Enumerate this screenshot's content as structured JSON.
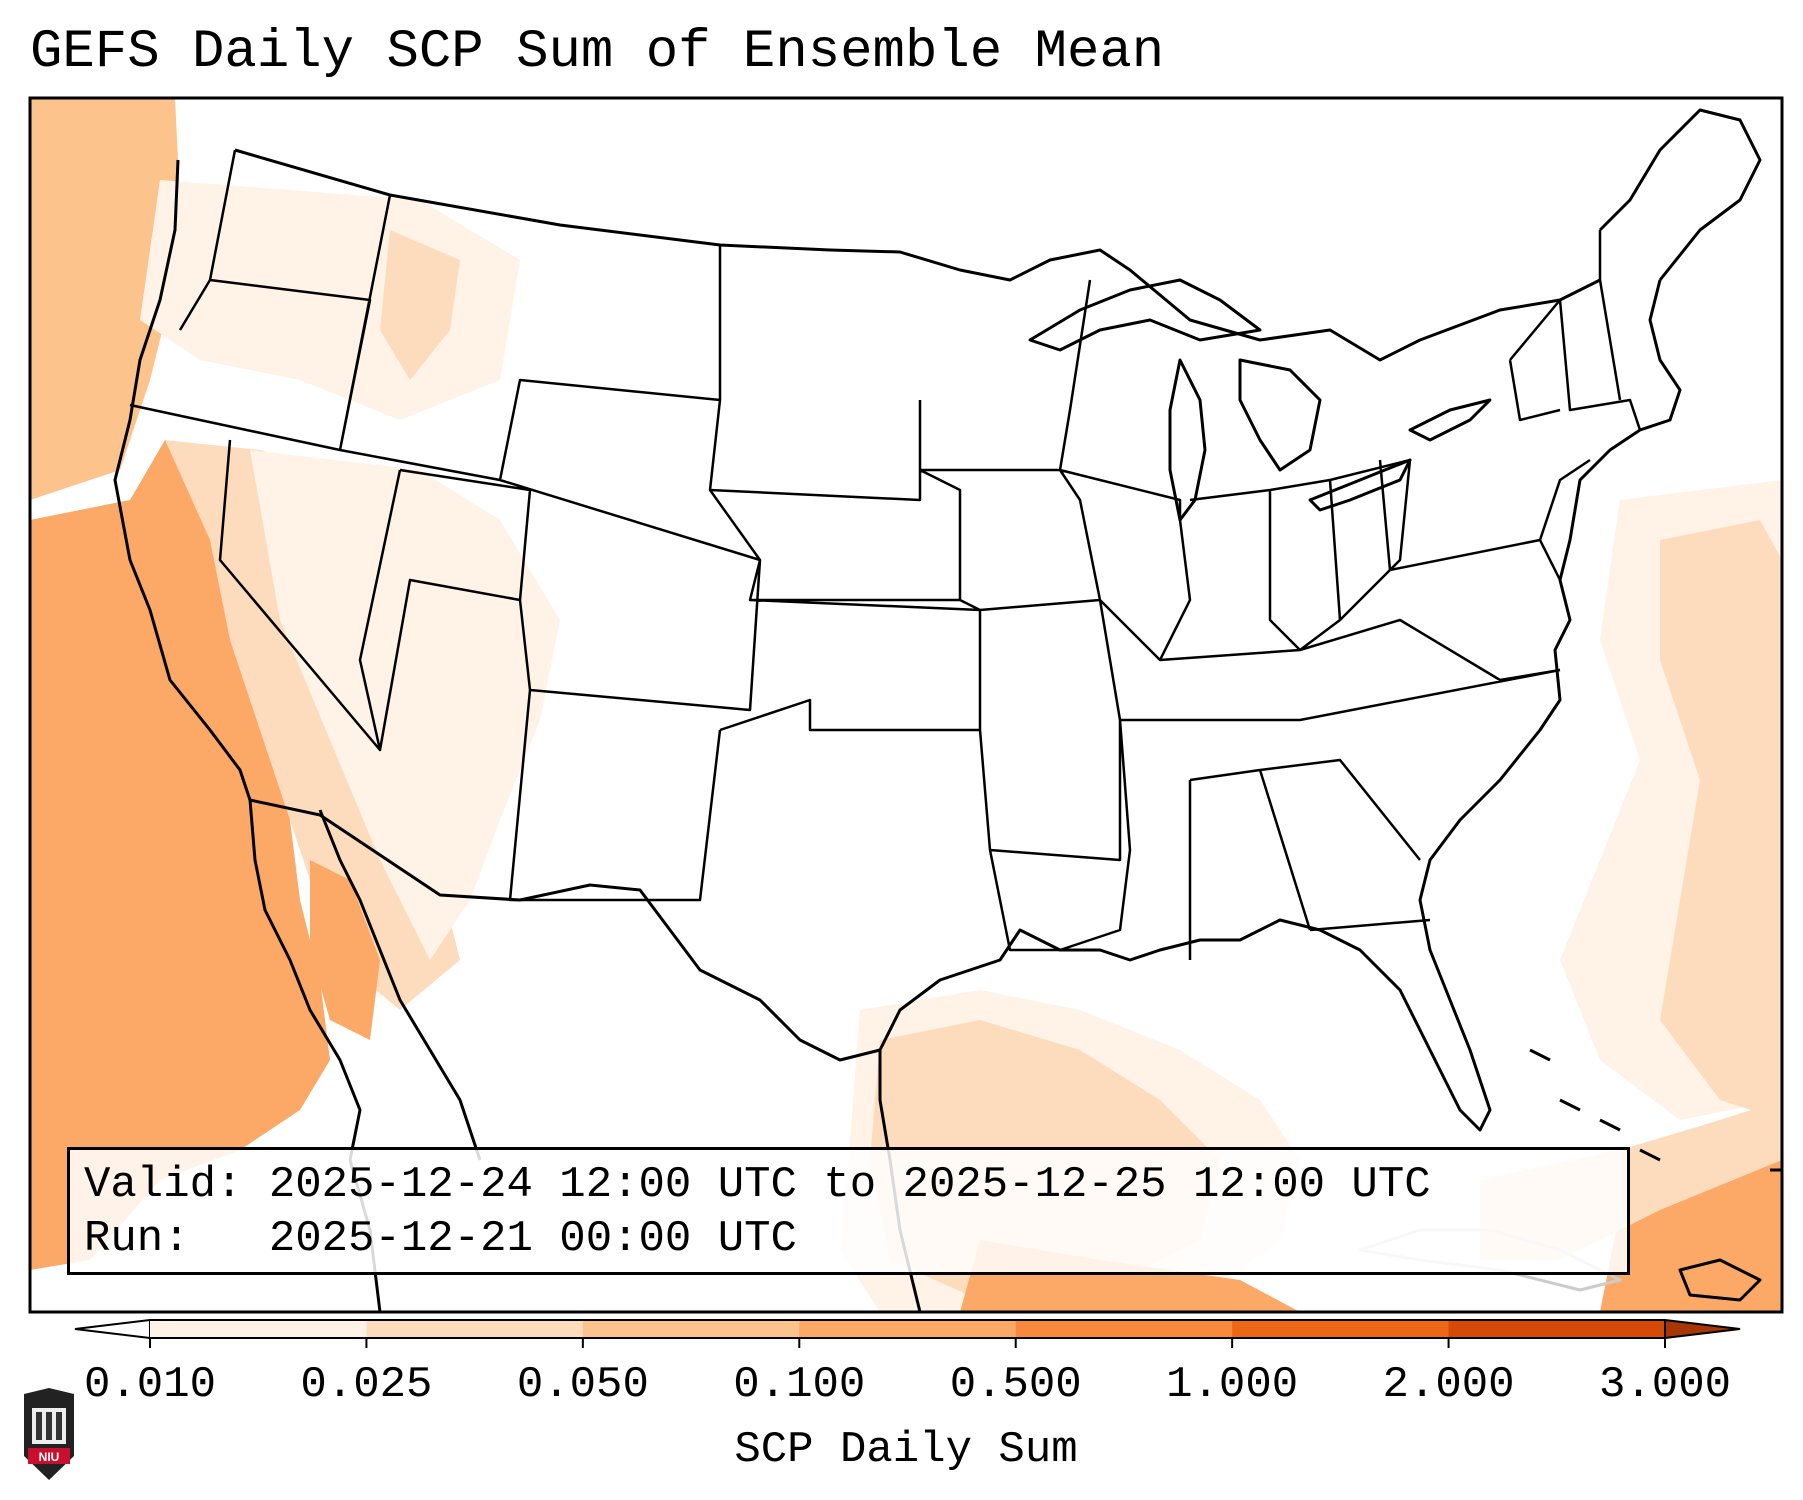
{
  "title": "GEFS Daily SCP Sum of Ensemble Mean",
  "info": {
    "valid_label": "Valid:",
    "valid_value": "2025-12-24 12:00 UTC to 2025-12-25 12:00 UTC",
    "run_label": "Run:",
    "run_value": "2025-12-21 00:00 UTC"
  },
  "colorbar": {
    "label": "SCP Daily Sum",
    "ticks": [
      "0.010",
      "0.025",
      "0.050",
      "0.100",
      "0.500",
      "1.000",
      "2.000",
      "3.000"
    ],
    "colors": [
      "#fff2e6",
      "#fddcbd",
      "#fdc38c",
      "#fca866",
      "#f98a3c",
      "#ec6716",
      "#d54a06"
    ],
    "under_color": "#ffffff",
    "over_color": "#a63603"
  },
  "logo": {
    "text": "NIU",
    "colors": {
      "shield": "#c8102e",
      "tower": "#333333"
    }
  },
  "legend_colors": {
    "outline": "#000000",
    "map_bg": "#ffffff"
  }
}
